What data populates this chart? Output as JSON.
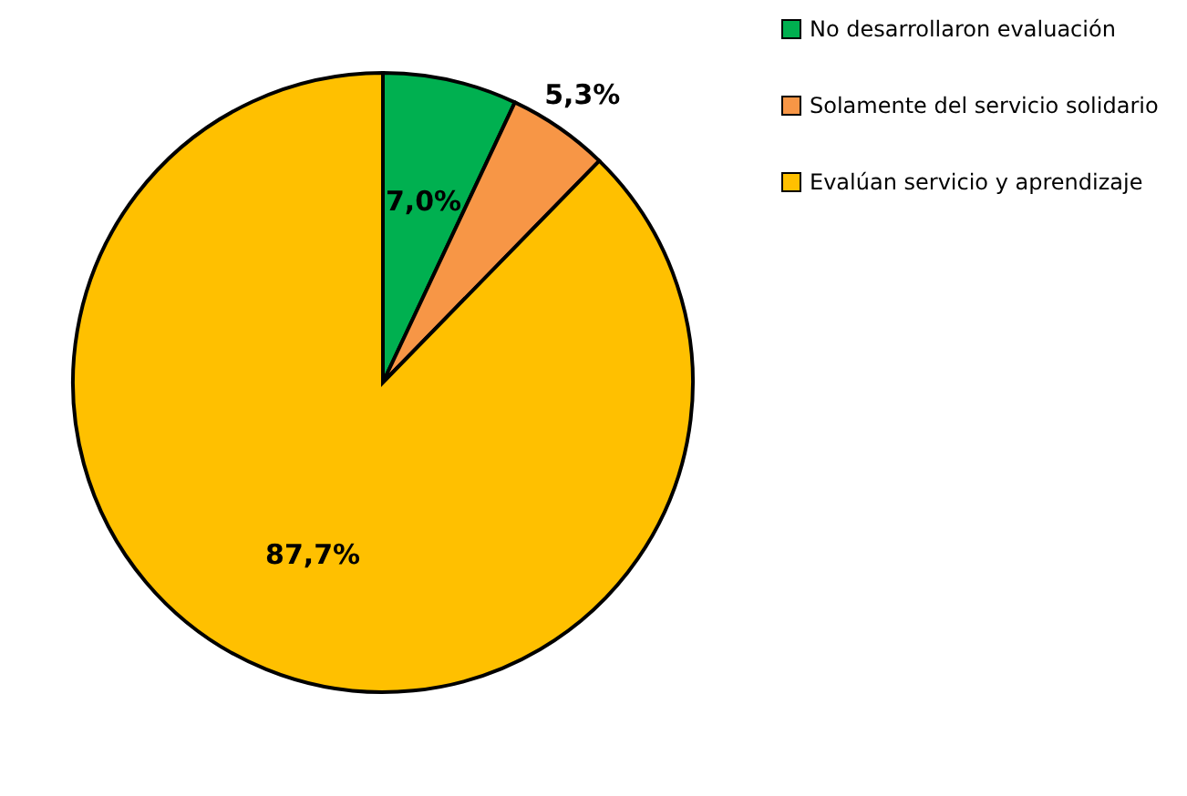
{
  "chart_data": {
    "type": "pie",
    "categories": [
      "No desarrollaron evaluación",
      "Solamente del servicio solidario",
      "Evalúan servicio y aprendizaje"
    ],
    "values": [
      7.0,
      5.3,
      87.7
    ],
    "colors": [
      "#00b050",
      "#f79646",
      "#ffc000"
    ],
    "value_labels": [
      "7,0%",
      "5,3%",
      "87,7%"
    ],
    "legend": "right"
  }
}
